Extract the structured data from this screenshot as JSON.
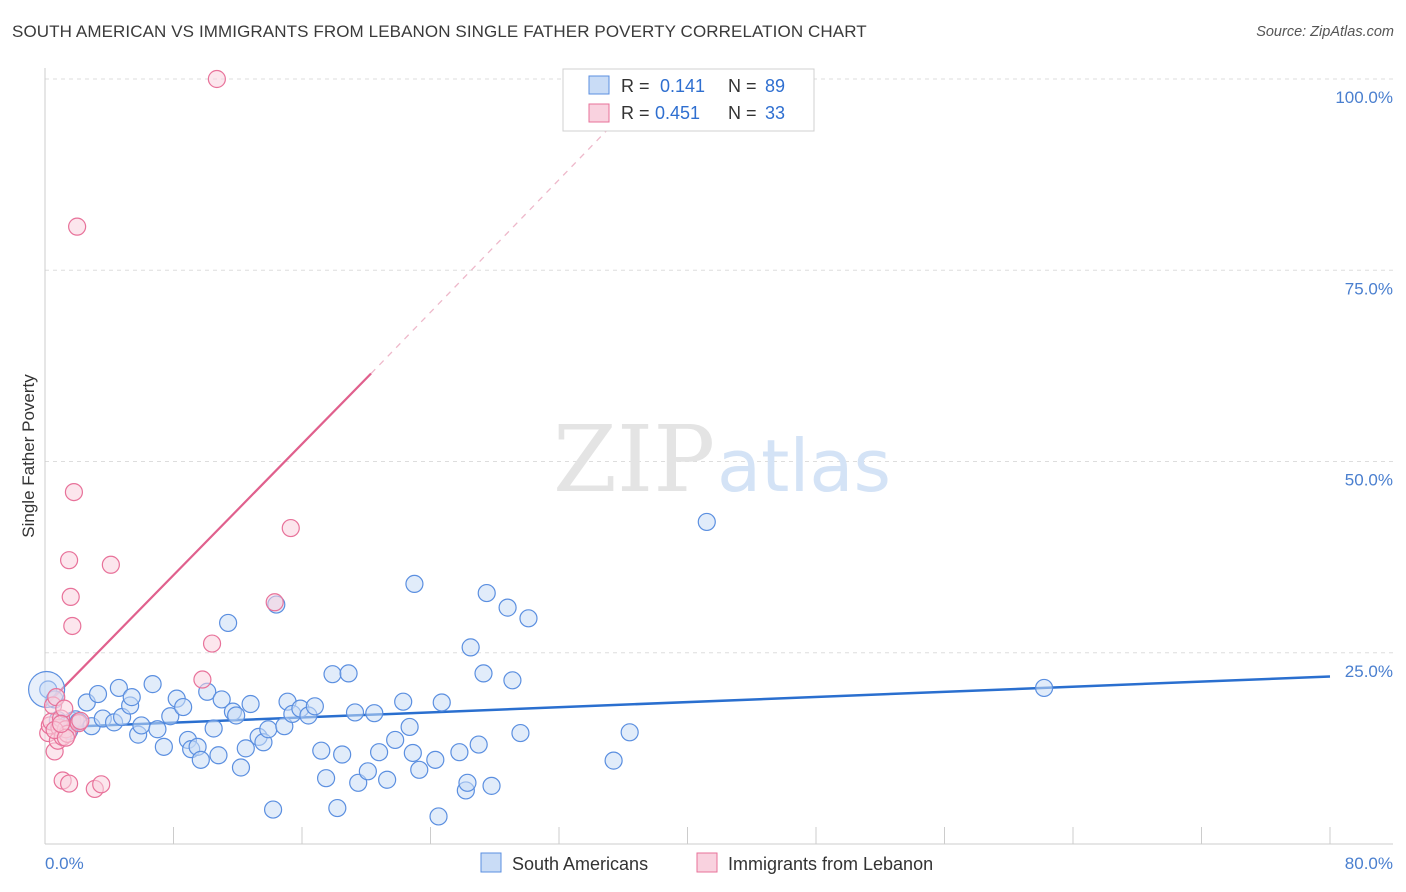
{
  "title": "SOUTH AMERICAN VS IMMIGRANTS FROM LEBANON SINGLE FATHER POVERTY CORRELATION CHART",
  "source": "Source: ZipAtlas.com",
  "watermark": {
    "zip": "ZIP",
    "atlas": "atlas"
  },
  "colors": {
    "blue": "#5b8fe0",
    "blue_fill": "#c9dcf6",
    "blue_line": "#2a6fcf",
    "pink": "#e8729a",
    "pink_fill": "#f9d2df",
    "pink_line": "#e0608d",
    "grid": "#dddddd",
    "tick_text": "#4a7fcf"
  },
  "legend": {
    "rows": [
      {
        "r_label": "R = ",
        "r_value": "0.141",
        "n_label": "N = ",
        "n_value": "89"
      },
      {
        "r_label": "R = ",
        "r_value": "0.451",
        "n_label": "N = ",
        "n_value": "33"
      }
    ]
  },
  "bottom_legend": [
    "South Americans",
    "Immigrants from Lebanon"
  ],
  "chart_data": {
    "type": "scatter",
    "xlabel": "",
    "ylabel": "Single Father Poverty",
    "xlim": [
      0,
      80
    ],
    "ylim": [
      0,
      100
    ],
    "x_tick_labels": [
      "0.0%",
      "80.0%"
    ],
    "y_ticks": [
      25,
      50,
      75,
      100
    ],
    "y_tick_labels": [
      "25.0%",
      "50.0%",
      "75.0%",
      "100.0%"
    ],
    "grid": "horizontal dashed",
    "series": [
      {
        "name": "South Americans",
        "color": "#5b8fe0",
        "trend": {
          "x": [
            0,
            80
          ],
          "y": [
            15.2,
            21.9
          ],
          "style": "solid"
        },
        "points": [
          [
            0.2,
            20.2
          ],
          [
            0.6,
            18.9
          ],
          [
            0.8,
            16.2
          ],
          [
            1.0,
            15.8
          ],
          [
            1.1,
            15.0
          ],
          [
            1.3,
            15.5
          ],
          [
            1.5,
            14.8
          ],
          [
            1.7,
            16.1
          ],
          [
            1.9,
            16.3
          ],
          [
            2.1,
            16.0
          ],
          [
            2.6,
            18.5
          ],
          [
            2.9,
            15.4
          ],
          [
            3.3,
            19.6
          ],
          [
            3.6,
            16.4
          ],
          [
            4.3,
            15.9
          ],
          [
            4.6,
            20.4
          ],
          [
            4.8,
            16.6
          ],
          [
            5.3,
            18.1
          ],
          [
            5.4,
            19.2
          ],
          [
            5.8,
            14.3
          ],
          [
            6.0,
            15.5
          ],
          [
            6.7,
            20.9
          ],
          [
            7.0,
            15.0
          ],
          [
            7.4,
            12.7
          ],
          [
            7.8,
            16.7
          ],
          [
            8.2,
            19.0
          ],
          [
            8.6,
            17.9
          ],
          [
            8.9,
            13.6
          ],
          [
            9.1,
            12.4
          ],
          [
            9.5,
            12.7
          ],
          [
            9.7,
            11.0
          ],
          [
            10.1,
            19.9
          ],
          [
            10.5,
            15.1
          ],
          [
            10.8,
            11.6
          ],
          [
            11.0,
            18.9
          ],
          [
            11.4,
            28.9
          ],
          [
            11.7,
            17.3
          ],
          [
            11.9,
            16.8
          ],
          [
            12.2,
            10.0
          ],
          [
            12.5,
            12.5
          ],
          [
            12.8,
            18.3
          ],
          [
            13.3,
            14.0
          ],
          [
            13.6,
            13.3
          ],
          [
            13.9,
            15.0
          ],
          [
            14.2,
            4.5
          ],
          [
            14.4,
            31.3
          ],
          [
            14.9,
            15.4
          ],
          [
            15.1,
            18.6
          ],
          [
            15.4,
            17.0
          ],
          [
            15.9,
            17.7
          ],
          [
            16.4,
            16.8
          ],
          [
            16.8,
            18.0
          ],
          [
            17.2,
            12.2
          ],
          [
            17.5,
            8.6
          ],
          [
            17.9,
            22.2
          ],
          [
            18.5,
            11.7
          ],
          [
            18.9,
            22.3
          ],
          [
            19.3,
            17.2
          ],
          [
            18.2,
            4.7
          ],
          [
            19.5,
            8.0
          ],
          [
            20.1,
            9.5
          ],
          [
            20.5,
            17.1
          ],
          [
            20.8,
            12.0
          ],
          [
            21.3,
            8.4
          ],
          [
            21.8,
            13.6
          ],
          [
            22.3,
            18.6
          ],
          [
            22.7,
            15.3
          ],
          [
            22.9,
            11.9
          ],
          [
            23.3,
            9.7
          ],
          [
            23.0,
            34.0
          ],
          [
            24.3,
            11.0
          ],
          [
            24.5,
            3.6
          ],
          [
            24.7,
            18.5
          ],
          [
            25.8,
            12.0
          ],
          [
            26.2,
            7.0
          ],
          [
            26.3,
            8.0
          ],
          [
            26.5,
            25.7
          ],
          [
            27.0,
            13.0
          ],
          [
            27.3,
            22.3
          ],
          [
            27.5,
            32.8
          ],
          [
            27.8,
            7.6
          ],
          [
            28.8,
            30.9
          ],
          [
            29.1,
            21.4
          ],
          [
            29.6,
            14.5
          ],
          [
            30.1,
            29.5
          ],
          [
            35.4,
            10.9
          ],
          [
            36.4,
            14.6
          ],
          [
            41.2,
            42.1
          ],
          [
            62.2,
            20.4
          ]
        ]
      },
      {
        "name": "Immigrants from Lebanon",
        "color": "#e8729a",
        "trend": {
          "x": [
            0,
            20.3
          ],
          "y": [
            18.0,
            61.5
          ],
          "style": "solid"
        },
        "trend_extension": {
          "x": [
            20.3,
            36
          ],
          "y": [
            61.5,
            95.5
          ],
          "style": "dashed"
        },
        "points": [
          [
            0.2,
            14.5
          ],
          [
            0.3,
            15.5
          ],
          [
            0.4,
            16.0
          ],
          [
            0.5,
            18.1
          ],
          [
            0.6,
            12.1
          ],
          [
            0.7,
            19.2
          ],
          [
            0.8,
            13.5
          ],
          [
            0.9,
            15.2
          ],
          [
            1.0,
            16.4
          ],
          [
            1.1,
            14.0
          ],
          [
            1.1,
            8.3
          ],
          [
            1.2,
            17.7
          ],
          [
            1.3,
            15.0
          ],
          [
            1.4,
            14.4
          ],
          [
            1.5,
            37.1
          ],
          [
            1.5,
            7.9
          ],
          [
            1.6,
            32.3
          ],
          [
            1.7,
            28.5
          ],
          [
            1.8,
            46.0
          ],
          [
            2.0,
            80.7
          ],
          [
            2.1,
            15.8
          ],
          [
            2.2,
            16.1
          ],
          [
            3.1,
            7.2
          ],
          [
            3.5,
            7.8
          ],
          [
            4.1,
            36.5
          ],
          [
            9.8,
            21.5
          ],
          [
            10.4,
            26.2
          ],
          [
            10.7,
            100.0
          ],
          [
            14.3,
            31.6
          ],
          [
            15.3,
            41.3
          ],
          [
            0.6,
            14.9
          ],
          [
            1.3,
            13.9
          ],
          [
            1.0,
            15.7
          ]
        ]
      }
    ]
  }
}
